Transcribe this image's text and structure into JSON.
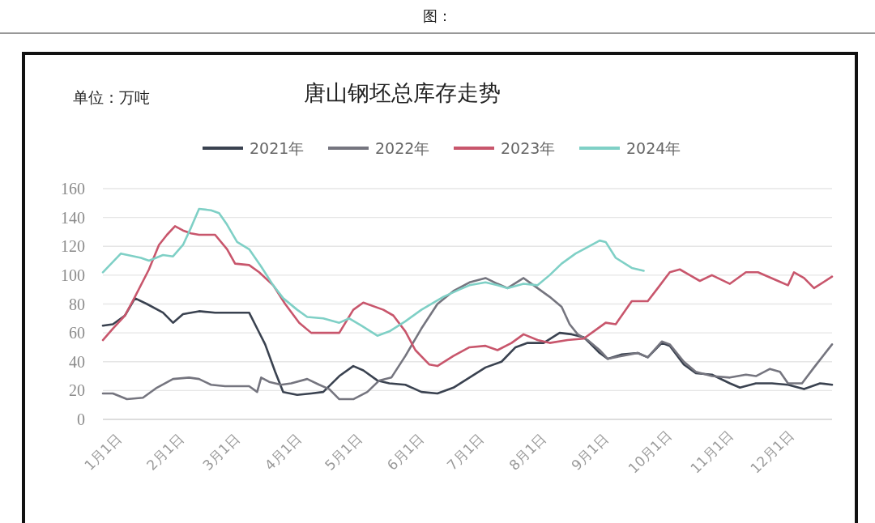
{
  "chart_data": {
    "type": "line",
    "title": "唐山钢坯总库存走势",
    "ylabel": "单位：万吨",
    "annotations": [
      "图："
    ],
    "xlim": [
      "--01-01",
      "--12-31"
    ],
    "xticks": [
      {
        "value": "--01-01",
        "label": "1月1日"
      },
      {
        "value": "--02-01",
        "label": "2月1日"
      },
      {
        "value": "--03-01",
        "label": "3月1日"
      },
      {
        "value": "--04-01",
        "label": "4月1日"
      },
      {
        "value": "--05-01",
        "label": "5月1日"
      },
      {
        "value": "--06-01",
        "label": "6月1日"
      },
      {
        "value": "--07-01",
        "label": "7月1日"
      },
      {
        "value": "--08-01",
        "label": "8月1日"
      },
      {
        "value": "--09-01",
        "label": "9月1日"
      },
      {
        "value": "--10-01",
        "label": "10月1日"
      },
      {
        "value": "--11-01",
        "label": "11月1日"
      },
      {
        "value": "--12-01",
        "label": "12月1日"
      }
    ],
    "ylim": [
      0,
      160
    ],
    "yticks": [
      0,
      20,
      40,
      60,
      80,
      100,
      120,
      140,
      160
    ],
    "grid": "y",
    "legend": "top",
    "marker": "none",
    "line_style": "solid",
    "series": [
      {
        "name": "2021年",
        "color": "#3a4250",
        "x": [
          "--01-01",
          "--01-06",
          "--01-12",
          "--01-17",
          "--01-23",
          "--01-31",
          "--02-05",
          "--02-10",
          "--02-18",
          "--02-26",
          "--03-09",
          "--03-15",
          "--03-19",
          "--03-23",
          "--03-28",
          "--04-01",
          "--04-08",
          "--04-15",
          "--04-21",
          "--04-29",
          "--05-06",
          "--05-11",
          "--05-18",
          "--05-24",
          "--06-01",
          "--06-09",
          "--06-17",
          "--06-25",
          "--07-03",
          "--07-11",
          "--07-19",
          "--07-26",
          "--08-01",
          "--08-09",
          "--08-17",
          "--08-23",
          "--08-29",
          "--09-01",
          "--09-06",
          "--09-10",
          "--09-17",
          "--09-25",
          "--09-30",
          "--10-07",
          "--10-11",
          "--10-18",
          "--10-24",
          "--11-01",
          "--11-10",
          "--11-15",
          "--11-23",
          "--12-01",
          "--12-09",
          "--12-17",
          "--12-25",
          "--12-31"
        ],
        "values": [
          65,
          66,
          72,
          84,
          80,
          74,
          67,
          73,
          75,
          74,
          74,
          74,
          63,
          52,
          33,
          19,
          17,
          18,
          19,
          30,
          37,
          34,
          27,
          25,
          24,
          19,
          18,
          22,
          29,
          36,
          40,
          50,
          53,
          53,
          60,
          59,
          57,
          53,
          46,
          42,
          45,
          46,
          43,
          53,
          51,
          38,
          32,
          31,
          25,
          22,
          25,
          25,
          24,
          21,
          25,
          24
        ]
      },
      {
        "name": "2022年",
        "color": "#75757f",
        "x": [
          "--01-01",
          "--01-06",
          "--01-13",
          "--01-21",
          "--01-28",
          "--02-05",
          "--02-13",
          "--02-18",
          "--02-24",
          "--03-03",
          "--03-15",
          "--03-19",
          "--03-21",
          "--03-25",
          "--03-31",
          "--04-05",
          "--04-13",
          "--04-19",
          "--04-24",
          "--04-29",
          "--05-06",
          "--05-13",
          "--05-19",
          "--05-25",
          "--06-01",
          "--06-09",
          "--06-17",
          "--06-25",
          "--07-03",
          "--07-11",
          "--07-17",
          "--07-22",
          "--07-30",
          "--08-04",
          "--08-12",
          "--08-18",
          "--08-22",
          "--08-26",
          "--08-31",
          "--09-06",
          "--09-10",
          "--09-17",
          "--09-25",
          "--09-30",
          "--10-07",
          "--10-11",
          "--10-18",
          "--10-24",
          "--11-01",
          "--11-10",
          "--11-18",
          "--11-23",
          "--11-30",
          "--12-05",
          "--12-09",
          "--12-16",
          "--12-22",
          "--12-31"
        ],
        "values": [
          18,
          18,
          14,
          15,
          22,
          28,
          29,
          28,
          24,
          23,
          23,
          19,
          29,
          26,
          24,
          25,
          28,
          24,
          21,
          14,
          14,
          19,
          27,
          29,
          44,
          63,
          80,
          89,
          95,
          98,
          94,
          91,
          98,
          93,
          85,
          78,
          66,
          59,
          55,
          48,
          42,
          44,
          46,
          43,
          54,
          52,
          40,
          33,
          30,
          29,
          31,
          30,
          35,
          33,
          25,
          25,
          36,
          52
        ]
      },
      {
        "name": "2023年",
        "color": "#c8566c",
        "x": [
          "--01-01",
          "--01-06",
          "--01-12",
          "--01-17",
          "--01-24",
          "--01-29",
          "--02-02",
          "--02-06",
          "--02-10",
          "--02-14",
          "--02-18",
          "--02-26",
          "--03-04",
          "--03-08",
          "--03-15",
          "--03-20",
          "--03-27",
          "--04-02",
          "--04-09",
          "--04-15",
          "--04-21",
          "--04-29",
          "--05-06",
          "--05-11",
          "--05-21",
          "--05-26",
          "--06-01",
          "--06-06",
          "--06-13",
          "--06-17",
          "--06-25",
          "--07-03",
          "--07-11",
          "--07-17",
          "--07-24",
          "--07-30",
          "--08-06",
          "--08-12",
          "--08-21",
          "--08-29",
          "--09-03",
          "--09-09",
          "--09-14",
          "--09-22",
          "--09-30",
          "--10-05",
          "--10-11",
          "--10-16",
          "--10-21",
          "--10-26",
          "--11-01",
          "--11-10",
          "--11-18",
          "--11-24",
          "--12-04",
          "--12-09",
          "--12-12",
          "--12-17",
          "--12-22",
          "--12-31"
        ],
        "values": [
          55,
          63,
          72,
          85,
          104,
          121,
          128,
          134,
          131,
          129,
          128,
          128,
          118,
          108,
          107,
          102,
          93,
          80,
          67,
          60,
          60,
          60,
          76,
          81,
          76,
          72,
          61,
          48,
          38,
          37,
          44,
          50,
          51,
          48,
          53,
          59,
          55,
          53,
          55,
          56,
          61,
          67,
          66,
          82,
          82,
          91,
          102,
          104,
          100,
          96,
          100,
          94,
          102,
          102,
          96,
          93,
          102,
          98,
          91,
          99
        ]
      },
      {
        "name": "2024年",
        "color": "#7fd0c6",
        "x": [
          "--01-01",
          "--01-10",
          "--01-20",
          "--01-24",
          "--01-31",
          "--02-05",
          "--02-10",
          "--02-14",
          "--02-18",
          "--02-24",
          "--02-28",
          "--03-04",
          "--03-09",
          "--03-15",
          "--03-21",
          "--03-27",
          "--04-01",
          "--04-08",
          "--04-13",
          "--04-21",
          "--04-29",
          "--05-04",
          "--05-10",
          "--05-18",
          "--05-24",
          "--06-01",
          "--06-09",
          "--06-20",
          "--06-28",
          "--07-03",
          "--07-11",
          "--07-17",
          "--07-22",
          "--07-30",
          "--08-06",
          "--08-12",
          "--08-18",
          "--08-25",
          "--08-29",
          "--09-06",
          "--09-09",
          "--09-14",
          "--09-22",
          "--09-28"
        ],
        "values": [
          102,
          115,
          112,
          110,
          114,
          113,
          121,
          133,
          146,
          145,
          143,
          135,
          123,
          118,
          106,
          93,
          84,
          76,
          71,
          70,
          67,
          70,
          65,
          58,
          61,
          68,
          76,
          85,
          90,
          93,
          95,
          93,
          91,
          94,
          93,
          100,
          108,
          115,
          118,
          124,
          123,
          112,
          105,
          103
        ]
      }
    ]
  }
}
